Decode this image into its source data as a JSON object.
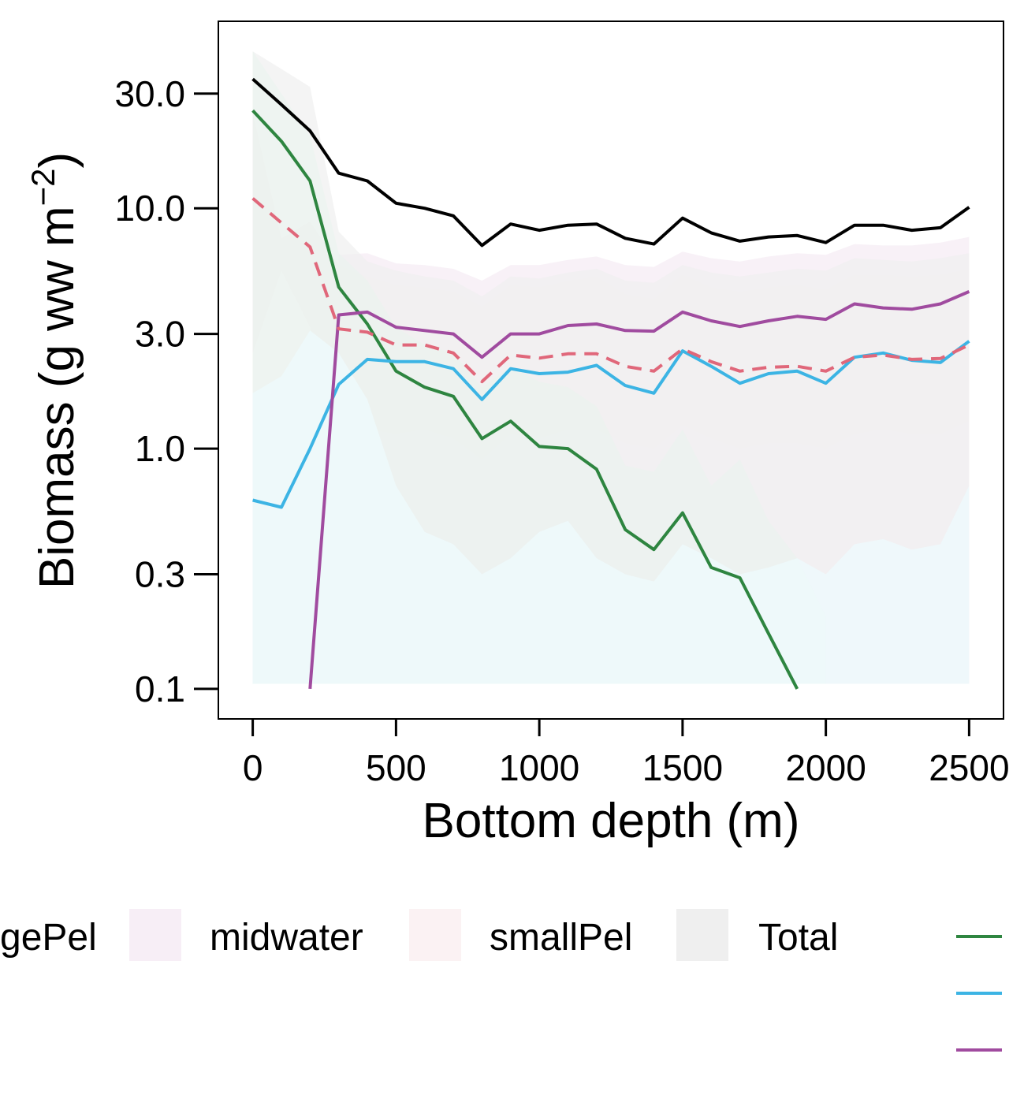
{
  "chart_data": {
    "type": "line",
    "xlabel": "Bottom depth (m)",
    "ylabel": "Biomass (g ww m^-2)",
    "ylabel_base": "Biomass (g ww m",
    "ylabel_exp": "−2",
    "ylabel_close": ")",
    "y_scale": "log",
    "xlim": [
      -120,
      2620
    ],
    "ylim": [
      0.075,
      60
    ],
    "x_ticks": [
      0,
      500,
      1000,
      1500,
      2000,
      2500
    ],
    "x_tick_labels": [
      "0",
      "500",
      "1000",
      "1500",
      "2000",
      "2500"
    ],
    "y_ticks": [
      0.1,
      0.3,
      1.0,
      3.0,
      10.0,
      30.0
    ],
    "y_tick_labels": [
      "0.1",
      "0.3",
      "1.0",
      "3.0",
      "10.0",
      "30.0"
    ],
    "grid": false,
    "legend_position": "bottom",
    "legend_entries": [
      {
        "label": "gePel",
        "fill": "#e9f4ee"
      },
      {
        "label": "midwater",
        "fill": "#f7eef6"
      },
      {
        "label": "smallPel",
        "fill": "#fbf2f3"
      },
      {
        "label": "Total",
        "fill": "#efefef"
      }
    ],
    "legend_lines": [
      "#2e8540",
      "#3cb4e4",
      "#a04b9f"
    ],
    "x": [
      0,
      100,
      200,
      300,
      400,
      500,
      600,
      700,
      800,
      900,
      1000,
      1100,
      1200,
      1300,
      1400,
      1500,
      1600,
      1700,
      1800,
      1900,
      2000,
      2100,
      2200,
      2300,
      2400,
      2500
    ],
    "series": [
      {
        "color": "#000000",
        "dash": false,
        "values": [
          34.5,
          27.0,
          21.0,
          14.0,
          13.0,
          10.5,
          10.0,
          9.3,
          7.0,
          8.6,
          8.1,
          8.5,
          8.6,
          7.5,
          7.1,
          9.1,
          7.9,
          7.3,
          7.6,
          7.7,
          7.2,
          8.5,
          8.5,
          8.1,
          8.3,
          10.1
        ]
      },
      {
        "color": "#2e8540",
        "dash": false,
        "values": [
          25.5,
          19.0,
          13.0,
          4.7,
          3.3,
          2.1,
          1.8,
          1.65,
          1.1,
          1.3,
          1.02,
          1.0,
          0.82,
          0.46,
          0.38,
          0.54,
          0.32,
          0.29,
          0.17,
          0.1,
          null,
          null,
          null,
          null,
          null,
          null
        ]
      },
      {
        "color": "#3cb4e4",
        "dash": false,
        "values": [
          0.61,
          0.57,
          1.0,
          1.85,
          2.35,
          2.3,
          2.3,
          2.15,
          1.6,
          2.15,
          2.05,
          2.08,
          2.22,
          1.83,
          1.7,
          2.55,
          2.2,
          1.87,
          2.05,
          2.1,
          1.87,
          2.4,
          2.5,
          2.33,
          2.28,
          2.8
        ]
      },
      {
        "color": "#a04b9f",
        "dash": false,
        "values": [
          null,
          null,
          0.1,
          3.6,
          3.7,
          3.2,
          3.1,
          3.0,
          2.4,
          3.0,
          3.0,
          3.25,
          3.3,
          3.1,
          3.08,
          3.7,
          3.4,
          3.22,
          3.4,
          3.55,
          3.45,
          4.0,
          3.85,
          3.8,
          4.0,
          4.5
        ]
      },
      {
        "color": "#e0677a",
        "dash": true,
        "values": [
          11.0,
          8.7,
          6.9,
          3.15,
          3.05,
          2.7,
          2.7,
          2.5,
          1.9,
          2.45,
          2.38,
          2.48,
          2.48,
          2.2,
          2.1,
          2.6,
          2.3,
          2.1,
          2.18,
          2.2,
          2.1,
          2.4,
          2.45,
          2.35,
          2.37,
          2.7
        ]
      }
    ],
    "bands": [
      {
        "name": "smallPel",
        "fill": "#fbf2f3",
        "opacity": 0.85,
        "upper": [
          25.0,
          7.5,
          8.8,
          5.8,
          5.2,
          4.8,
          4.7,
          4.5,
          3.9,
          4.8,
          4.7,
          5.0,
          5.2,
          4.4,
          4.2,
          5.3,
          4.7,
          4.5,
          4.7,
          4.8,
          4.6,
          5.3,
          5.3,
          5.2,
          5.3,
          5.6
        ],
        "lower": [
          2.5,
          5.5,
          3.2,
          1.3,
          1.2,
          1.15,
          1.2,
          1.1,
          0.9,
          1.15,
          1.1,
          1.2,
          1.2,
          1.05,
          1.0,
          1.25,
          1.1,
          1.0,
          1.05,
          1.05,
          1.0,
          1.15,
          1.2,
          1.15,
          1.15,
          1.3
        ]
      },
      {
        "name": "midwater",
        "fill": "#f7eef6",
        "opacity": 0.85,
        "upper": [
          null,
          null,
          null,
          6.4,
          6.5,
          5.9,
          5.8,
          5.6,
          5.0,
          5.8,
          5.8,
          6.1,
          6.3,
          5.8,
          5.7,
          6.6,
          6.2,
          6.0,
          6.3,
          6.5,
          6.4,
          7.1,
          7.0,
          7.0,
          7.2,
          7.6
        ],
        "lower": [
          null,
          null,
          null,
          0.105,
          0.105,
          0.105,
          0.105,
          0.105,
          0.105,
          0.105,
          0.105,
          0.105,
          0.105,
          0.105,
          0.105,
          0.105,
          0.105,
          0.105,
          0.105,
          0.105,
          0.105,
          0.105,
          0.105,
          0.105,
          0.105,
          0.105
        ]
      },
      {
        "name": "Total",
        "fill": "#efefef",
        "opacity": 0.7,
        "upper": [
          45.0,
          38.0,
          32.0,
          8.0,
          6.0,
          5.5,
          5.2,
          5.0,
          4.3,
          5.2,
          5.1,
          5.4,
          5.6,
          5.0,
          4.9,
          5.8,
          5.4,
          5.2,
          5.4,
          5.6,
          5.5,
          6.2,
          6.1,
          6.0,
          6.2,
          6.5
        ],
        "lower": [
          0.105,
          0.105,
          0.105,
          0.105,
          0.105,
          0.105,
          0.105,
          0.105,
          0.105,
          0.105,
          0.105,
          0.105,
          0.105,
          0.105,
          0.105,
          0.105,
          0.105,
          0.105,
          0.105,
          0.105,
          0.105,
          0.105,
          0.105,
          0.105,
          0.105,
          0.105
        ]
      },
      {
        "name": "gePel",
        "fill": "#e9f4ee",
        "opacity": 0.6,
        "upper": [
          45.0,
          30.0,
          20.0,
          6.5,
          5.0,
          3.2,
          2.7,
          2.5,
          1.8,
          2.2,
          1.9,
          1.8,
          1.5,
          0.85,
          0.8,
          1.2,
          0.7,
          0.9,
          0.5,
          0.35,
          0.2,
          null,
          null,
          null,
          null,
          null
        ],
        "lower": [
          0.105,
          0.105,
          0.105,
          0.105,
          0.105,
          0.105,
          0.105,
          0.105,
          0.105,
          0.105,
          0.105,
          0.105,
          0.105,
          0.105,
          0.105,
          0.105,
          0.105,
          0.105,
          0.105,
          0.105,
          0.105,
          null,
          null,
          null,
          null,
          null
        ]
      },
      {
        "name": "",
        "fill": "#eefafc",
        "opacity": 0.8,
        "upper": [
          1.7,
          2.0,
          3.1,
          2.5,
          1.6,
          0.7,
          0.45,
          0.4,
          0.3,
          0.35,
          0.45,
          0.5,
          0.35,
          0.3,
          0.28,
          0.4,
          0.35,
          0.3,
          0.32,
          0.35,
          0.3,
          0.4,
          0.42,
          0.38,
          0.4,
          0.7
        ],
        "lower": [
          0.105,
          0.105,
          0.105,
          0.105,
          0.105,
          0.105,
          0.105,
          0.105,
          0.105,
          0.105,
          0.105,
          0.105,
          0.105,
          0.105,
          0.105,
          0.105,
          0.105,
          0.105,
          0.105,
          0.105,
          0.105,
          0.105,
          0.105,
          0.105,
          0.105,
          0.105
        ]
      }
    ]
  }
}
